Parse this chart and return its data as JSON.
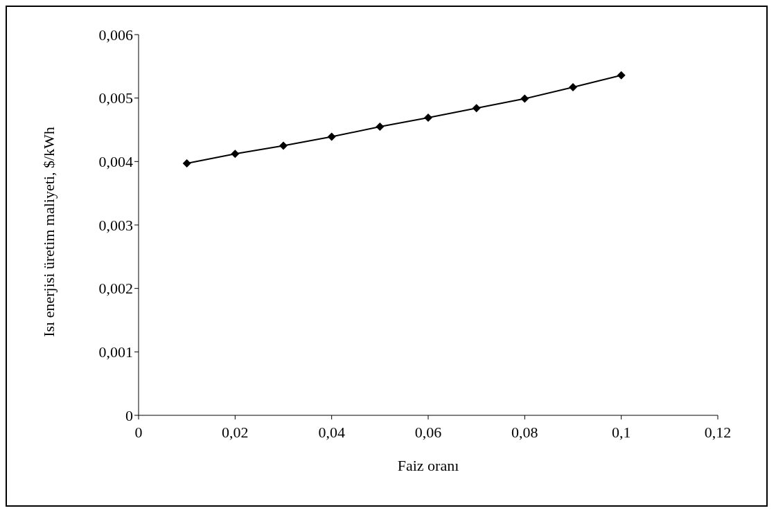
{
  "chart_data": {
    "type": "line",
    "xlabel": "Faiz oranı",
    "ylabel": "Isı enerjisi üretim maliyeti, $/kWh",
    "x": [
      0.01,
      0.02,
      0.03,
      0.04,
      0.05,
      0.06,
      0.07,
      0.08,
      0.09,
      0.1
    ],
    "series": [
      {
        "color": "#000000",
        "values": [
          0.00397,
          0.00412,
          0.00425,
          0.00439,
          0.00455,
          0.00469,
          0.00484,
          0.00499,
          0.00517,
          0.00536
        ]
      }
    ],
    "xlim": [
      0,
      0.12
    ],
    "xticks": [
      {
        "value": 0,
        "label": "0"
      },
      {
        "value": 0.02,
        "label": "0,02"
      },
      {
        "value": 0.04,
        "label": "0,04"
      },
      {
        "value": 0.06,
        "label": "0,06"
      },
      {
        "value": 0.08,
        "label": "0,08"
      },
      {
        "value": 0.1,
        "label": "0,1"
      },
      {
        "value": 0.12,
        "label": "0,12"
      }
    ],
    "ylim": [
      0,
      0.006
    ],
    "yticks": [
      {
        "value": 0,
        "label": "0"
      },
      {
        "value": 0.001,
        "label": "0,001"
      },
      {
        "value": 0.002,
        "label": "0,002"
      },
      {
        "value": 0.003,
        "label": "0,003"
      },
      {
        "value": 0.004,
        "label": "0,004"
      },
      {
        "value": 0.005,
        "label": "0,005"
      },
      {
        "value": 0.006,
        "label": "0,006"
      }
    ],
    "marker": "diamond",
    "line_style": "solid",
    "grid": false,
    "legend": false
  }
}
